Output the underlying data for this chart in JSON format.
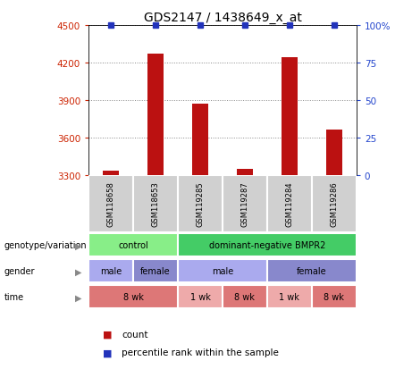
{
  "title": "GDS2147 / 1438649_x_at",
  "samples": [
    "GSM118658",
    "GSM118653",
    "GSM119285",
    "GSM119287",
    "GSM119284",
    "GSM119286"
  ],
  "counts": [
    3330,
    4270,
    3870,
    3345,
    4240,
    3660
  ],
  "percentile_ranks": [
    100,
    100,
    100,
    100,
    100,
    100
  ],
  "ylim": [
    3300,
    4500
  ],
  "yticks": [
    3300,
    3600,
    3900,
    4200,
    4500
  ],
  "right_yticks": [
    0,
    25,
    50,
    75,
    100
  ],
  "right_ylim": [
    0,
    100
  ],
  "bar_color": "#bb1111",
  "percentile_color": "#2233bb",
  "left_tick_color": "#cc2200",
  "right_tick_color": "#2244cc",
  "title_fontsize": 10,
  "sample_box_color": "#d0d0d0",
  "annotation_rows": [
    {
      "label": "genotype/variation",
      "cells": [
        {
          "text": "control",
          "span": 2,
          "color": "#88ee88"
        },
        {
          "text": "dominant-negative BMPR2",
          "span": 4,
          "color": "#44cc66"
        }
      ]
    },
    {
      "label": "gender",
      "cells": [
        {
          "text": "male",
          "span": 1,
          "color": "#aaaaee"
        },
        {
          "text": "female",
          "span": 1,
          "color": "#8888cc"
        },
        {
          "text": "male",
          "span": 2,
          "color": "#aaaaee"
        },
        {
          "text": "female",
          "span": 2,
          "color": "#8888cc"
        }
      ]
    },
    {
      "label": "time",
      "cells": [
        {
          "text": "8 wk",
          "span": 2,
          "color": "#dd7777"
        },
        {
          "text": "1 wk",
          "span": 1,
          "color": "#eeaaaa"
        },
        {
          "text": "8 wk",
          "span": 1,
          "color": "#dd7777"
        },
        {
          "text": "1 wk",
          "span": 1,
          "color": "#eeaaaa"
        },
        {
          "text": "8 wk",
          "span": 1,
          "color": "#dd7777"
        }
      ]
    }
  ],
  "legend_items": [
    {
      "color": "#bb1111",
      "label": "count"
    },
    {
      "color": "#2233bb",
      "label": "percentile rank within the sample"
    }
  ]
}
